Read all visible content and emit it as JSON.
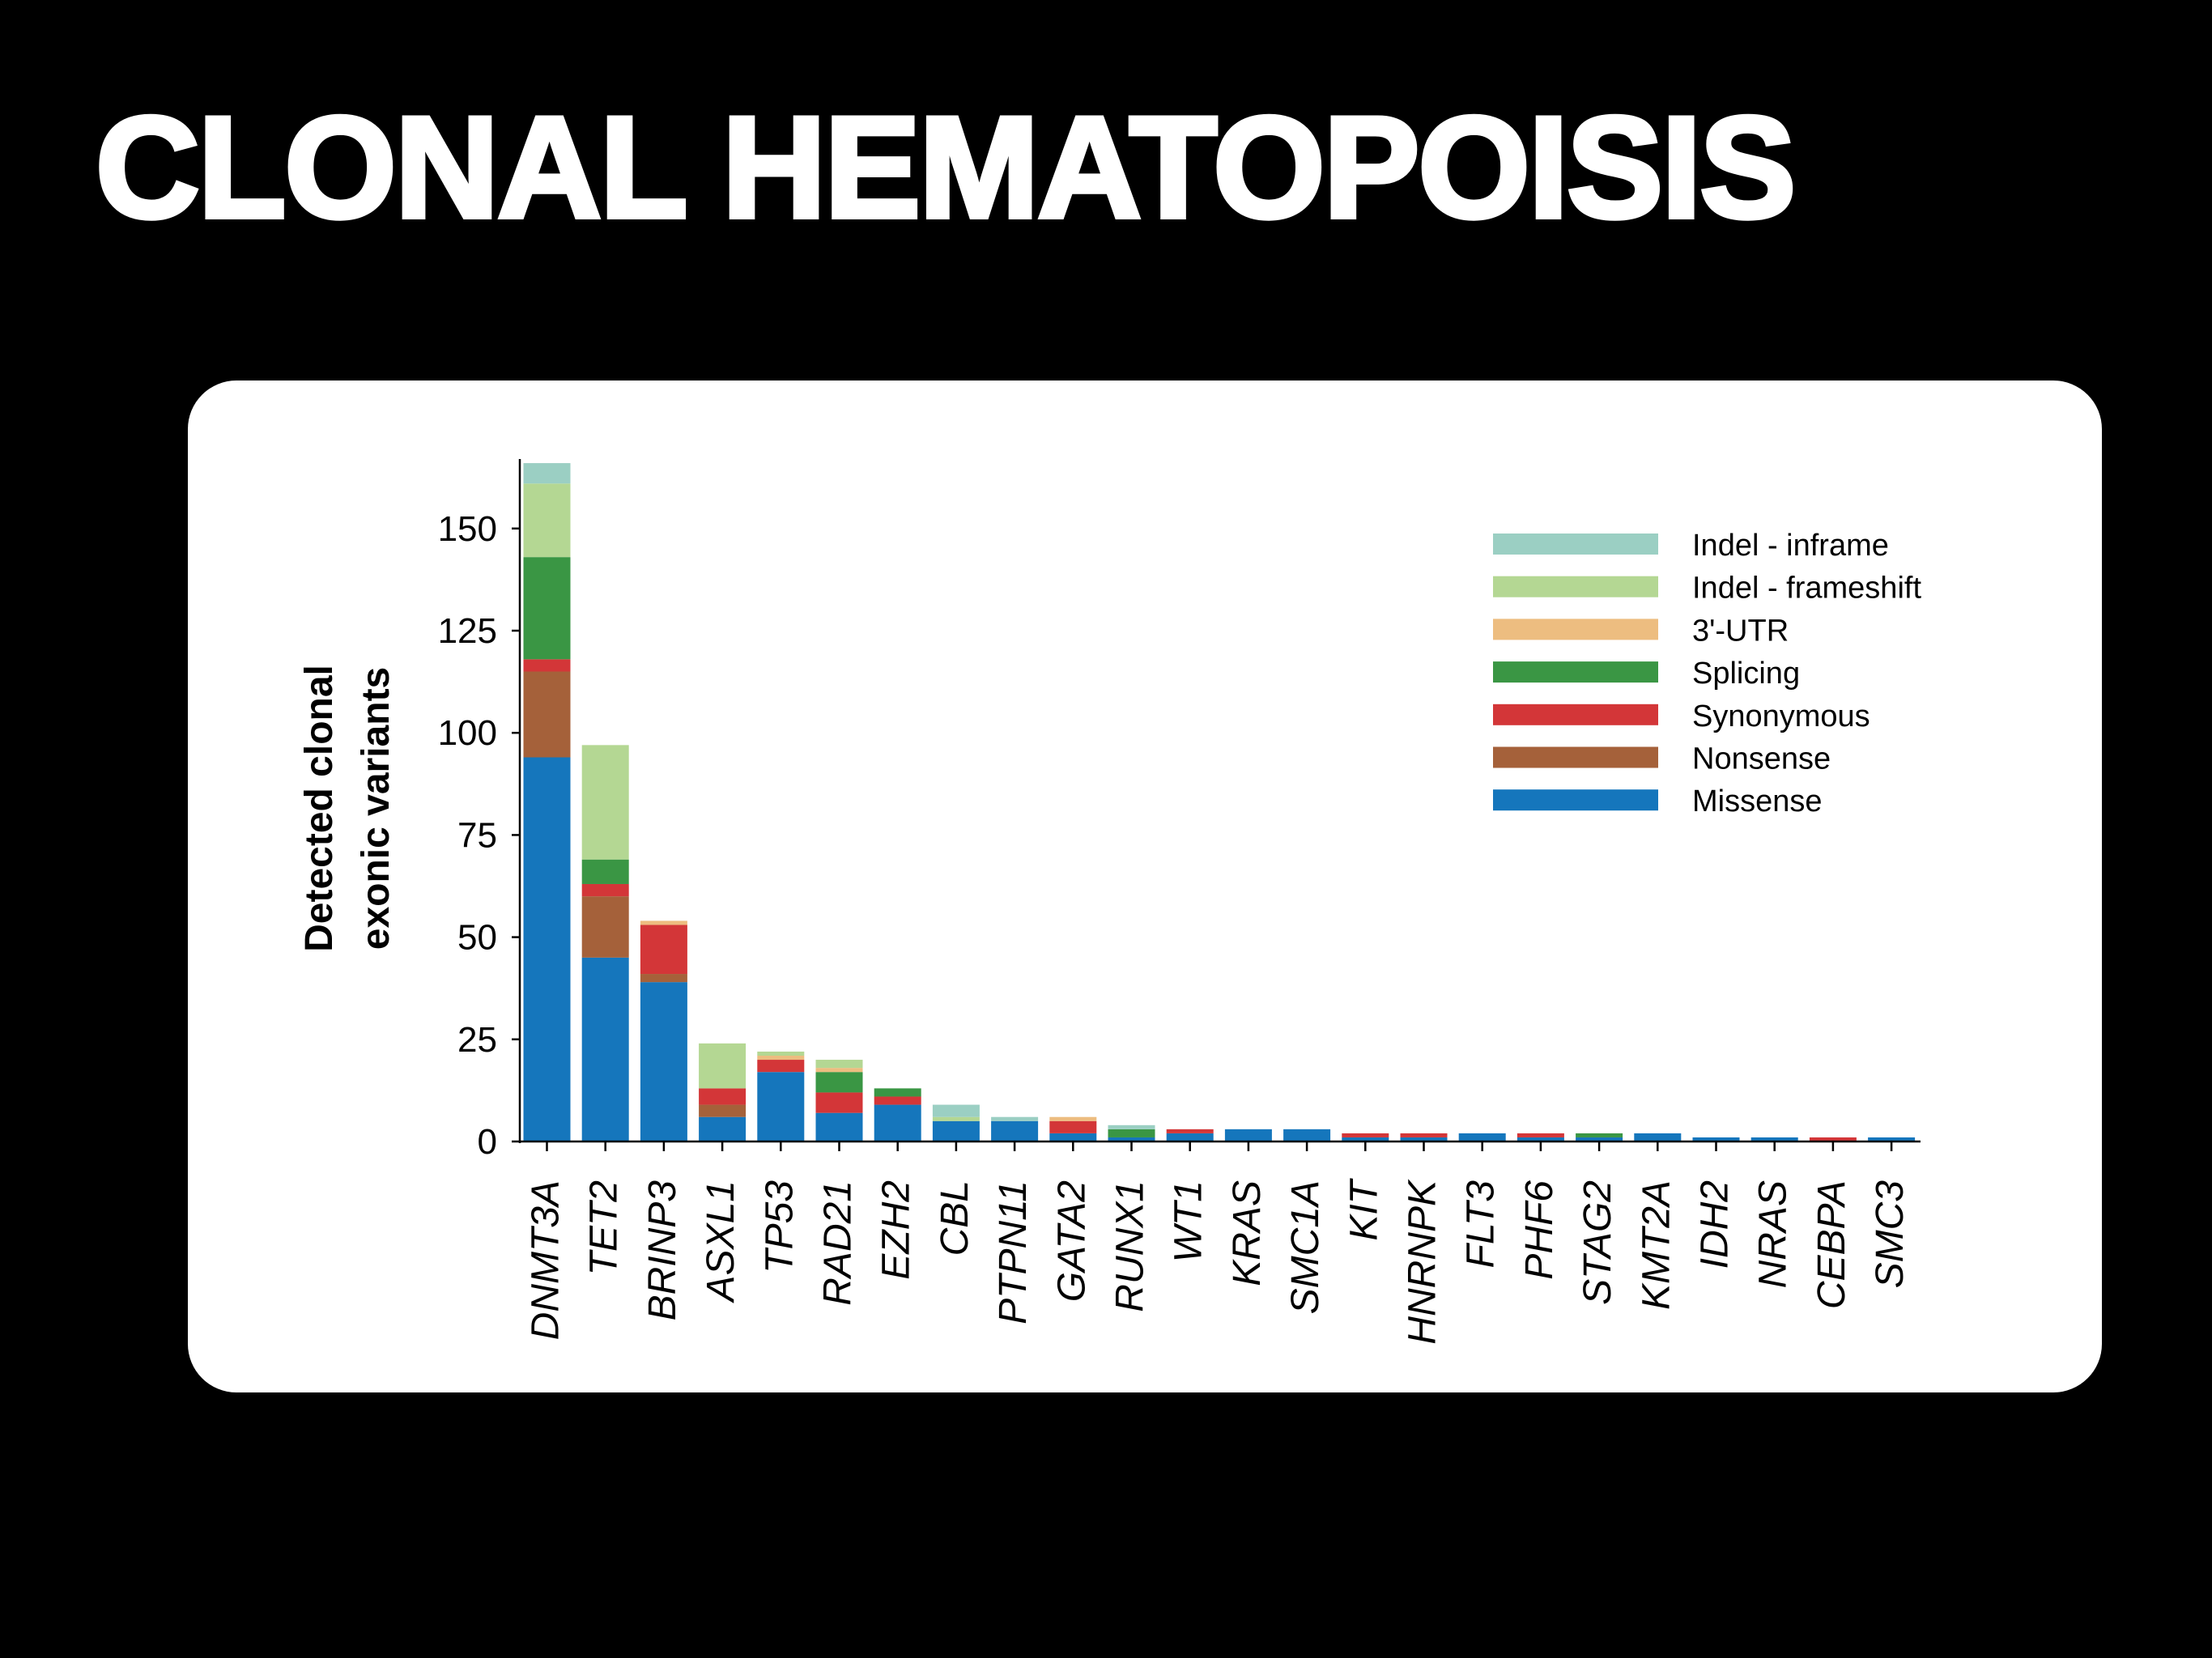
{
  "title": "CLONAL HEMATOPOISIS",
  "chart_data": {
    "type": "bar",
    "stacked": true,
    "ylabel": [
      "Detected clonal",
      "exonic variants"
    ],
    "xlabel": "",
    "ylim": [
      0,
      167
    ],
    "yticks": [
      0,
      25,
      50,
      75,
      100,
      125,
      150
    ],
    "legend_position": "top-right",
    "categories": [
      "DNMT3A",
      "TET2",
      "BRINP3",
      "ASXL1",
      "TP53",
      "RAD21",
      "EZH2",
      "CBL",
      "PTPN11",
      "GATA2",
      "RUNX1",
      "WT1",
      "KRAS",
      "SMC1A",
      "KIT",
      "HNRNPK",
      "FLT3",
      "PHF6",
      "STAG2",
      "KMT2A",
      "IDH2",
      "NRAS",
      "CEBPA",
      "SMC3"
    ],
    "series": [
      {
        "name": "Missense",
        "color": "#1576BC",
        "values": [
          94,
          45,
          39,
          6,
          17,
          7,
          9,
          5,
          5,
          2,
          1,
          2,
          3,
          3,
          1,
          1,
          2,
          1,
          1,
          2,
          1,
          1,
          0,
          1
        ]
      },
      {
        "name": "Nonsense",
        "color": "#A5613A",
        "values": [
          21,
          15,
          2,
          3,
          0,
          0,
          0,
          0,
          0,
          0,
          0,
          0,
          0,
          0,
          0,
          0,
          0,
          0,
          0,
          0,
          0,
          0,
          0,
          0
        ]
      },
      {
        "name": "Synonymous",
        "color": "#D33638",
        "values": [
          3,
          3,
          12,
          4,
          3,
          5,
          2,
          0,
          0,
          3,
          0,
          1,
          0,
          0,
          1,
          1,
          0,
          1,
          0,
          0,
          0,
          0,
          1,
          0
        ]
      },
      {
        "name": "Splicing",
        "color": "#3A9644",
        "values": [
          25,
          6,
          0,
          0,
          0,
          5,
          2,
          0,
          0,
          0,
          2,
          0,
          0,
          0,
          0,
          0,
          0,
          0,
          1,
          0,
          0,
          0,
          0,
          0
        ]
      },
      {
        "name": "3'-UTR",
        "color": "#EDBD80",
        "values": [
          0,
          0,
          1,
          0,
          1,
          1,
          0,
          0,
          0,
          1,
          0,
          0,
          0,
          0,
          0,
          0,
          0,
          0,
          0,
          0,
          0,
          0,
          0,
          0
        ]
      },
      {
        "name": "Indel - frameshift",
        "color": "#B4D793",
        "values": [
          18,
          28,
          0,
          11,
          1,
          2,
          0,
          1,
          0,
          0,
          0,
          0,
          0,
          0,
          0,
          0,
          0,
          0,
          0,
          0,
          0,
          0,
          0,
          0
        ]
      },
      {
        "name": "Indel - inframe",
        "color": "#9BCFC3",
        "values": [
          5,
          0,
          0,
          0,
          0,
          0,
          0,
          3,
          1,
          0,
          1,
          0,
          0,
          0,
          0,
          0,
          0,
          0,
          0,
          0,
          0,
          0,
          0,
          0
        ]
      }
    ],
    "legend_order": [
      "Indel - inframe",
      "Indel - frameshift",
      "3'-UTR",
      "Splicing",
      "Synonymous",
      "Nonsense",
      "Missense"
    ]
  }
}
